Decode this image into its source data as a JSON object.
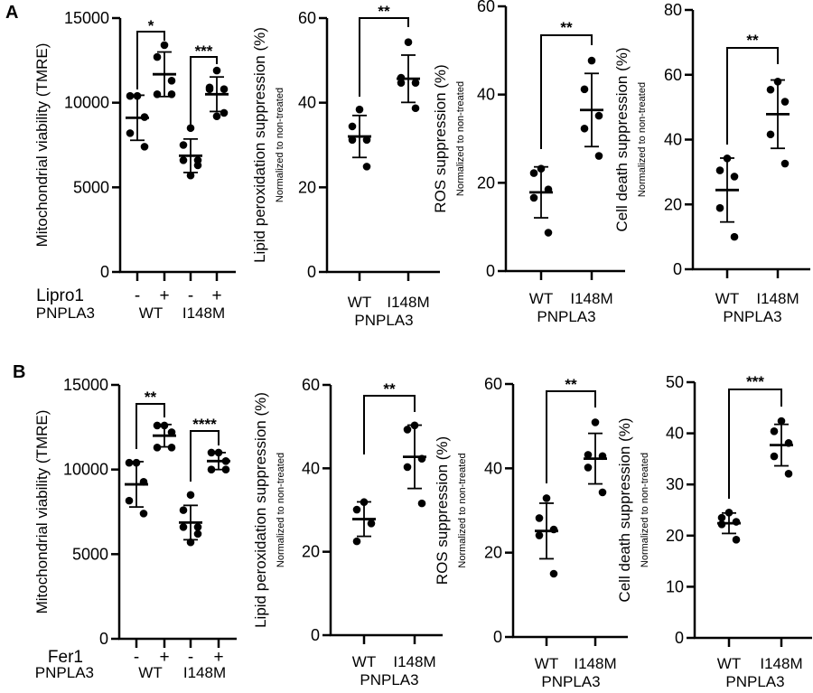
{
  "panel_letters": [
    "A",
    "B"
  ],
  "chart_data": [
    {
      "panel": "A",
      "type": "scatter",
      "ylabel": "Mitochondrial viability (TMRE)",
      "ylabel_sub": "",
      "ylim": [
        0,
        15000
      ],
      "yticks": [
        "0",
        "5000",
        "10000",
        "15000"
      ],
      "x_rows": {
        "treatment_label": "Lipro1",
        "treatment": [
          "-",
          "+",
          "-",
          "+"
        ],
        "genotype_label": "PNPLA3",
        "genotypes": [
          "WT",
          "I148M"
        ]
      },
      "groups": [
        {
          "values": [
            10400,
            10400,
            9150,
            8200,
            7400
          ]
        },
        {
          "values": [
            13400,
            12700,
            11300,
            10500,
            10500
          ]
        },
        {
          "values": [
            8500,
            7500,
            6600,
            6600,
            6300,
            5700
          ]
        },
        {
          "values": [
            11900,
            10900,
            10800,
            10800,
            9400,
            9200
          ]
        }
      ],
      "significance": [
        {
          "pair": [
            0,
            1
          ],
          "label": "*"
        },
        {
          "pair": [
            2,
            3
          ],
          "label": "***"
        }
      ]
    },
    {
      "panel": "A",
      "type": "scatter",
      "ylabel": "Lipid peroxidation suppression (%)",
      "ylabel_sub": "Normalized to non-treated",
      "ylim": [
        0,
        60
      ],
      "yticks": [
        "0",
        "20",
        "40",
        "60"
      ],
      "categories": [
        "WT",
        "I148M"
      ],
      "xlabel": "PNPLA3",
      "groups": [
        {
          "values": [
            38.4,
            34.4,
            31.2,
            31.2,
            24.9
          ]
        },
        {
          "values": [
            54.3,
            45.9,
            44.7,
            44.7,
            38.7
          ]
        }
      ],
      "significance": [
        {
          "pair": [
            0,
            1
          ],
          "label": "**"
        }
      ]
    },
    {
      "panel": "A",
      "type": "scatter",
      "ylabel": "ROS suppression (%)",
      "ylabel_sub": "Normalized to non-treated",
      "ylim": [
        0,
        60
      ],
      "yticks": [
        "0",
        "20",
        "40",
        "60"
      ],
      "categories": [
        "WT",
        "I148M"
      ],
      "xlabel": "PNPLA3",
      "groups": [
        {
          "values": [
            23.2,
            22.2,
            18.5,
            16.6,
            8.7
          ]
        },
        {
          "values": [
            47.7,
            41.2,
            35.2,
            32.3,
            26.1
          ]
        }
      ],
      "significance": [
        {
          "pair": [
            0,
            1
          ],
          "label": "**"
        }
      ]
    },
    {
      "panel": "A",
      "type": "scatter",
      "ylabel": "Cell death suppression (%)",
      "ylabel_sub": "Normalized to non-treated",
      "ylim": [
        0,
        80
      ],
      "yticks": [
        "0",
        "20",
        "40",
        "60",
        "80"
      ],
      "categories": [
        "WT",
        "I148M"
      ],
      "xlabel": "PNPLA3",
      "groups": [
        {
          "values": [
            34.2,
            30.5,
            28.6,
            18.9,
            10.0
          ]
        },
        {
          "values": [
            57.9,
            55.4,
            51.7,
            41.6,
            32.6
          ]
        }
      ],
      "significance": [
        {
          "pair": [
            0,
            1
          ],
          "label": "**"
        }
      ]
    },
    {
      "panel": "B",
      "type": "scatter",
      "ylabel": "Mitochondrial viability (TMRE)",
      "ylabel_sub": "",
      "ylim": [
        0,
        15000
      ],
      "yticks": [
        "0",
        "5000",
        "10000",
        "15000"
      ],
      "x_rows": {
        "treatment_label": "Fer1",
        "treatment": [
          "-",
          "+",
          "-",
          "+"
        ],
        "genotype_label": "PNPLA3",
        "genotypes": [
          "WT",
          "I148M"
        ]
      },
      "groups": [
        {
          "values": [
            10400,
            10400,
            9270,
            8160,
            7400
          ]
        },
        {
          "values": [
            12600,
            12600,
            12200,
            11300,
            11300
          ]
        },
        {
          "values": [
            8500,
            7600,
            6600,
            6600,
            6200,
            5700
          ]
        },
        {
          "values": [
            11000,
            11000,
            10500,
            10000,
            10000
          ]
        }
      ],
      "significance": [
        {
          "pair": [
            0,
            1
          ],
          "label": "**"
        },
        {
          "pair": [
            2,
            3
          ],
          "label": "****"
        }
      ]
    },
    {
      "panel": "B",
      "type": "scatter",
      "ylabel": "Lipid peroxidation suppression (%)",
      "ylabel_sub": "Normalized to non-treated",
      "ylim": [
        0,
        60
      ],
      "yticks": [
        "0",
        "20",
        "40",
        "60"
      ],
      "categories": [
        "WT",
        "I148M"
      ],
      "xlabel": "PNPLA3",
      "groups": [
        {
          "values": [
            31.9,
            30.1,
            26.8,
            22.5
          ]
        },
        {
          "values": [
            50.3,
            49.3,
            42.3,
            40.3,
            31.6
          ]
        }
      ],
      "significance": [
        {
          "pair": [
            0,
            1
          ],
          "label": "**"
        }
      ]
    },
    {
      "panel": "B",
      "type": "scatter",
      "ylabel": "ROS suppression (%)",
      "ylabel_sub": "Normalized to non-treated",
      "ylim": [
        0,
        60
      ],
      "yticks": [
        "0",
        "20",
        "40",
        "60"
      ],
      "categories": [
        "WT",
        "I148M"
      ],
      "xlabel": "PNPLA3",
      "groups": [
        {
          "values": [
            32.9,
            28.2,
            25.5,
            24.1,
            15.0
          ]
        },
        {
          "values": [
            50.9,
            43.2,
            42.9,
            40.2,
            34.3
          ]
        }
      ],
      "significance": [
        {
          "pair": [
            0,
            1
          ],
          "label": "**"
        }
      ]
    },
    {
      "panel": "B",
      "type": "scatter",
      "ylabel": "Cell death suppression (%)",
      "ylabel_sub": "Normalized to non-treated",
      "ylim": [
        0,
        50
      ],
      "yticks": [
        "0",
        "10",
        "20",
        "30",
        "40",
        "50"
      ],
      "categories": [
        "WT",
        "I148M"
      ],
      "xlabel": "PNPLA3",
      "groups": [
        {
          "values": [
            24.5,
            23.5,
            22.7,
            22.2,
            19.2
          ]
        },
        {
          "values": [
            42.4,
            40.4,
            38.1,
            35.5,
            32.1
          ]
        }
      ],
      "significance": [
        {
          "pair": [
            0,
            1
          ],
          "label": "***"
        }
      ]
    }
  ]
}
